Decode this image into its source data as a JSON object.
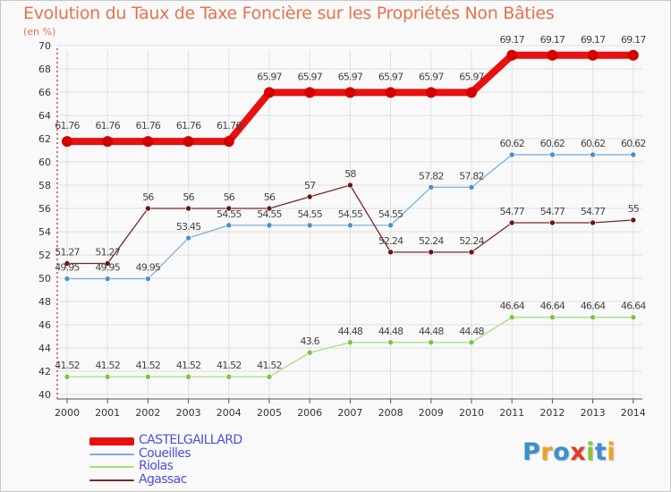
{
  "title": "Evolution du Taux de Taxe Foncière sur les Propriétés Non Bâties",
  "subtitle": "(en %)",
  "logo": {
    "text": "Proxiti",
    "colors": [
      "#3b8fd0",
      "#f2a21b",
      "#3b8fd0",
      "#e43a2e",
      "#8cc43c",
      "#3b8fd0",
      "#f2a21b"
    ]
  },
  "chart_data": {
    "type": "line",
    "title": "Evolution du Taux de Taxe Foncière sur les Propriétés Non Bâties",
    "ylabel": "(en %)",
    "xlabel": "",
    "ylim": [
      40,
      70
    ],
    "yticks": [
      40,
      42,
      44,
      46,
      48,
      50,
      52,
      54,
      56,
      58,
      60,
      62,
      64,
      66,
      68,
      70
    ],
    "grid": true,
    "x": [
      "2000",
      "2001",
      "2002",
      "2003",
      "2004",
      "2005",
      "2006",
      "2007",
      "2008",
      "2009",
      "2010",
      "2011",
      "2012",
      "2013",
      "2014"
    ],
    "series": [
      {
        "name": "CASTELGAILLARD",
        "color": "#e81010",
        "point_color": "#d40000",
        "line_width": 8,
        "values": [
          61.76,
          61.76,
          61.76,
          61.76,
          61.76,
          65.97,
          65.97,
          65.97,
          65.97,
          65.97,
          65.97,
          69.17,
          69.17,
          69.17,
          69.17
        ],
        "labels": [
          "61.76",
          "61.76",
          "61.76",
          "61.76",
          "61.76",
          "65.97",
          "65.97",
          "65.97",
          "65.97",
          "65.97",
          "65.97",
          "69.17",
          "69.17",
          "69.17",
          "69.17"
        ]
      },
      {
        "name": "Coueilles",
        "color": "#7ab0dc",
        "point_color": "#4a90c8",
        "line_width": 1.3,
        "values": [
          49.95,
          49.95,
          49.95,
          53.45,
          54.55,
          54.55,
          54.55,
          54.55,
          54.55,
          57.82,
          57.82,
          60.62,
          60.62,
          60.62,
          60.62
        ],
        "labels": [
          "49.95",
          "49.95",
          "49.95",
          "53.45",
          "54.55",
          "54.55",
          "54.55",
          "54.55",
          "54.55",
          "57.82",
          "57.82",
          "60.62",
          "60.62",
          "60.62",
          "60.62"
        ]
      },
      {
        "name": "Riolas",
        "color": "#a8dc7c",
        "point_color": "#7cc444",
        "line_width": 1.3,
        "values": [
          41.52,
          41.52,
          41.52,
          41.52,
          41.52,
          41.52,
          43.6,
          44.48,
          44.48,
          44.48,
          44.48,
          46.64,
          46.64,
          46.64,
          46.64
        ],
        "labels": [
          "41.52",
          "41.52",
          "41.52",
          "41.52",
          "41.52",
          "41.52",
          "43.6",
          "44.48",
          "44.48",
          "44.48",
          "44.48",
          "46.64",
          "46.64",
          "46.64",
          "46.64"
        ]
      },
      {
        "name": "Agassac",
        "color": "#7a2828",
        "point_color": "#6a1414",
        "line_width": 1.3,
        "values": [
          51.27,
          51.27,
          56,
          56,
          56,
          56,
          57,
          58,
          52.24,
          52.24,
          52.24,
          54.77,
          54.77,
          54.77,
          55
        ],
        "labels": [
          "51.27",
          "51.27",
          "56",
          "56",
          "56",
          "56",
          "57",
          "58",
          "52.24",
          "52.24",
          "52.24",
          "54.77",
          "54.77",
          "54.77",
          "55"
        ]
      }
    ],
    "legend_position": "bottom-left"
  }
}
